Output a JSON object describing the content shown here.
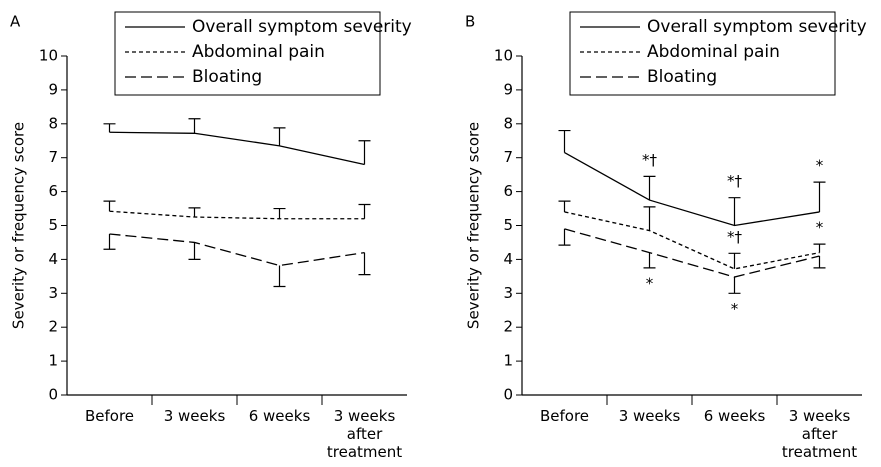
{
  "chart_data": [
    {
      "type": "line",
      "title": "A",
      "y_label": "Severity or frequency score",
      "categories": [
        "Before",
        "3 weeks",
        "6 weeks",
        "3 weeks after treatment"
      ],
      "ylim": [
        0,
        10
      ],
      "yticks": [
        0,
        1,
        2,
        3,
        4,
        5,
        6,
        7,
        8,
        9,
        10
      ],
      "legend": "top",
      "series": [
        {
          "name": "Overall symptom severity",
          "color": "#000000",
          "dash": "solid",
          "error_direction": "up",
          "values": [
            7.75,
            7.72,
            7.35,
            6.8
          ],
          "errors": [
            0.25,
            0.43,
            0.53,
            0.7
          ],
          "annotations": [
            null,
            null,
            null,
            null
          ]
        },
        {
          "name": "Abdominal pain",
          "color": "#000000",
          "dash": "short-dash",
          "error_direction": "up",
          "values": [
            5.42,
            5.25,
            5.2,
            5.2
          ],
          "errors": [
            0.3,
            0.27,
            0.3,
            0.42
          ],
          "annotations": [
            null,
            null,
            null,
            null
          ]
        },
        {
          "name": "Bloating",
          "color": "#000000",
          "dash": "long-dash",
          "error_direction": "down",
          "values": [
            4.75,
            4.5,
            3.82,
            4.2
          ],
          "errors": [
            0.45,
            0.5,
            0.62,
            0.65
          ],
          "annotations": [
            null,
            null,
            null,
            null
          ]
        }
      ]
    },
    {
      "type": "line",
      "title": "B",
      "y_label": "Severity or frequency score",
      "categories": [
        "Before",
        "3 weeks",
        "6 weeks",
        "3 weeks after treatment"
      ],
      "ylim": [
        0,
        10
      ],
      "yticks": [
        0,
        1,
        2,
        3,
        4,
        5,
        6,
        7,
        8,
        9,
        10
      ],
      "legend": "top",
      "series": [
        {
          "name": "Overall symptom severity",
          "color": "#000000",
          "dash": "solid",
          "error_direction": "up",
          "values": [
            7.15,
            5.75,
            5.0,
            5.4
          ],
          "errors": [
            0.65,
            0.7,
            0.82,
            0.88
          ],
          "annotations": [
            null,
            "*†",
            "*†",
            "*"
          ]
        },
        {
          "name": "Abdominal pain",
          "color": "#000000",
          "dash": "short-dash",
          "error_direction": "up",
          "values": [
            5.4,
            4.85,
            3.72,
            4.2
          ],
          "errors": [
            0.32,
            0.7,
            0.46,
            0.25
          ],
          "annotations": [
            null,
            null,
            "*†",
            "*"
          ]
        },
        {
          "name": "Bloating",
          "color": "#000000",
          "dash": "long-dash",
          "error_direction": "down",
          "values": [
            4.9,
            4.2,
            3.48,
            4.1
          ],
          "errors": [
            0.48,
            0.45,
            0.48,
            0.35
          ],
          "annotations": [
            null,
            "*",
            "*",
            null
          ]
        }
      ]
    }
  ]
}
